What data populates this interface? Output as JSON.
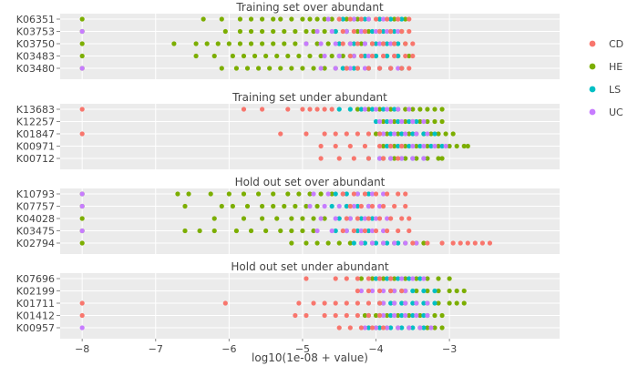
{
  "chart_data": {
    "type": "scatter",
    "xlabel": "log10(1e-08 + value)",
    "xlim": [
      -8.3,
      -1.5
    ],
    "x_ticks": [
      -8,
      -7,
      -6,
      -5,
      -4,
      -3
    ],
    "x_tick_labels": [
      "−8",
      "−7",
      "−6",
      "−5",
      "−4",
      "−3"
    ],
    "grid": true,
    "legend_position": "right",
    "legend": [
      {
        "name": "CD",
        "color": "#F8766D"
      },
      {
        "name": "HE",
        "color": "#7CAE00"
      },
      {
        "name": "LS",
        "color": "#00BFC4"
      },
      {
        "name": "UC",
        "color": "#C77CFF"
      }
    ],
    "panels": [
      {
        "title": "Training set over abundant",
        "categories": [
          "K06351",
          "K03753",
          "K03750",
          "K03483",
          "K03480"
        ],
        "points": {
          "K06351": {
            "CD": [
              -4.5,
              -4.35,
              -4.2,
              -4.0,
              -3.85,
              -3.7,
              -3.55
            ],
            "HE": [
              -8,
              -6.35,
              -6.1,
              -5.85,
              -5.7,
              -5.55,
              -5.4,
              -5.3,
              -5.15,
              -5.0,
              -4.9,
              -4.8,
              -4.7,
              -4.6,
              -4.4,
              -4.25,
              -4.1,
              -3.95,
              -3.75,
              -3.6
            ],
            "LS": [
              -4.45,
              -4.3,
              -4.15,
              -3.95,
              -3.8,
              -3.65
            ],
            "UC": [
              -4.65,
              -4.5,
              -4.3,
              -4.1,
              -3.9,
              -3.7
            ]
          },
          "K03753": {
            "CD": [
              -4.45,
              -4.3,
              -4.15,
              -3.95,
              -3.8,
              -3.65,
              -3.55
            ],
            "HE": [
              -8,
              -6.05,
              -5.85,
              -5.7,
              -5.55,
              -5.4,
              -5.25,
              -5.1,
              -4.95,
              -4.85,
              -4.7,
              -4.55,
              -4.4,
              -4.25,
              -4.1,
              -3.95,
              -3.8,
              -3.65
            ],
            "LS": [
              -4.55,
              -4.4,
              -4.2,
              -4.05,
              -3.9,
              -3.75
            ],
            "UC": [
              -8,
              -4.8,
              -4.6,
              -4.4,
              -4.2,
              -4.0,
              -3.85,
              -3.7
            ]
          },
          "K03750": {
            "CD": [
              -4.45,
              -4.25,
              -4.05,
              -3.9,
              -3.75,
              -3.6,
              -3.5
            ],
            "HE": [
              -8,
              -6.75,
              -6.45,
              -6.3,
              -6.15,
              -6.0,
              -5.85,
              -5.7,
              -5.55,
              -5.4,
              -5.25,
              -5.1,
              -4.95,
              -4.8,
              -4.65,
              -4.5,
              -4.35,
              -4.2,
              -4.05,
              -3.9,
              -3.75,
              -3.6
            ],
            "LS": [
              -4.5,
              -4.3,
              -4.15,
              -4.0,
              -3.85,
              -3.7
            ],
            "UC": [
              -4.95,
              -4.75,
              -4.55,
              -4.35,
              -4.15,
              -3.95,
              -3.8
            ]
          },
          "K03483": {
            "CD": [
              -4.35,
              -4.2,
              -4.05,
              -3.9,
              -3.75,
              -3.6,
              -3.5
            ],
            "HE": [
              -8,
              -6.45,
              -6.2,
              -5.95,
              -5.8,
              -5.65,
              -5.5,
              -5.35,
              -5.2,
              -5.05,
              -4.9,
              -4.75,
              -4.6,
              -4.45,
              -4.3,
              -4.15,
              -4.0,
              -3.85,
              -3.7,
              -3.55
            ],
            "LS": [
              -4.5,
              -4.35,
              -4.15,
              -4.0,
              -3.85,
              -3.7
            ],
            "UC": [
              -4.7,
              -4.5,
              -4.3,
              -4.1,
              -3.9,
              -3.75
            ]
          },
          "K03480": {
            "CD": [
              -4.4,
              -4.25,
              -4.1,
              -3.95,
              -3.8,
              -3.65,
              -3.55
            ],
            "HE": [
              -8,
              -6.1,
              -5.9,
              -5.75,
              -5.6,
              -5.45,
              -5.3,
              -5.15,
              -5.0,
              -4.85,
              -4.7,
              -4.55,
              -4.4,
              -4.25,
              -4.1,
              -3.95,
              -3.8,
              -3.65
            ],
            "LS": [
              -4.45,
              -4.3,
              -4.1,
              -3.95,
              -3.8,
              -3.65
            ],
            "UC": [
              -8,
              -4.75,
              -4.55,
              -4.35,
              -4.15,
              -3.95,
              -3.8,
              -3.7
            ]
          }
        }
      },
      {
        "title": "Training set under abundant",
        "categories": [
          "K13683",
          "K12257",
          "K01847",
          "K00971",
          "K00712"
        ],
        "points": {
          "K13683": {
            "CD": [
              -8,
              -5.8,
              -5.55,
              -5.2,
              -5.0,
              -4.9,
              -4.8,
              -4.7,
              -4.6
            ],
            "HE": [
              -4.25,
              -4.1,
              -3.95,
              -3.8,
              -3.7,
              -3.6,
              -3.5,
              -3.4,
              -3.3,
              -3.2,
              -3.1
            ],
            "LS": [
              -4.5,
              -4.35,
              -4.2,
              -4.05,
              -3.9,
              -3.75
            ],
            "UC": [
              -4.15,
              -4.0,
              -3.85,
              -3.7,
              -3.55
            ]
          },
          "K12257": {
            "CD": [],
            "HE": [
              -3.9,
              -3.75,
              -3.6,
              -3.5,
              -3.4,
              -3.3,
              -3.2,
              -3.1
            ],
            "LS": [
              -4.0,
              -3.85,
              -3.7,
              -3.55,
              -3.45
            ],
            "UC": [
              -3.95,
              -3.8,
              -3.65,
              -3.5,
              -3.35
            ]
          },
          "K01847": {
            "CD": [
              -8,
              -5.3,
              -4.95,
              -4.7,
              -4.55,
              -4.4,
              -4.25,
              -4.1,
              -3.95
            ],
            "HE": [
              -4.0,
              -3.85,
              -3.7,
              -3.55,
              -3.45,
              -3.35,
              -3.25,
              -3.15,
              -3.05,
              -2.95
            ],
            "LS": [
              -3.95,
              -3.8,
              -3.65,
              -3.5,
              -3.35,
              -3.2
            ],
            "UC": [
              -3.9,
              -3.75,
              -3.6,
              -3.45,
              -3.3
            ]
          },
          "K00971": {
            "CD": [
              -4.75,
              -4.55,
              -4.35,
              -4.15,
              -3.95,
              -3.8,
              -3.65
            ],
            "HE": [
              -3.9,
              -3.75,
              -3.6,
              -3.45,
              -3.3,
              -3.15,
              -3.0,
              -2.9,
              -2.8,
              -2.75
            ],
            "LS": [
              -3.85,
              -3.7,
              -3.55,
              -3.4,
              -3.25,
              -3.1
            ],
            "UC": [
              -3.8,
              -3.65,
              -3.5,
              -3.35,
              -3.2,
              -3.05
            ]
          },
          "K00712": {
            "CD": [
              -4.75,
              -4.5,
              -4.3,
              -4.1,
              -3.9,
              -3.7
            ],
            "HE": [
              -3.9,
              -3.75,
              -3.6,
              -3.45,
              -3.3,
              -3.15,
              -3.1
            ],
            "LS": [
              -4.1,
              -3.95,
              -3.8,
              -3.65,
              -3.5,
              -3.35
            ],
            "UC": [
              -3.95,
              -3.8,
              -3.65,
              -3.5,
              -3.35
            ]
          }
        }
      },
      {
        "title": "Hold out set over abundant",
        "categories": [
          "K10793",
          "K07757",
          "K04028",
          "K03475",
          "K02794"
        ],
        "points": {
          "K10793": {
            "CD": [
              -4.45,
              -4.3,
              -4.15,
              -4.0,
              -3.85,
              -3.7,
              -3.6
            ],
            "HE": [
              -8,
              -6.7,
              -6.55,
              -6.25,
              -6.0,
              -5.8,
              -5.6,
              -5.4,
              -5.2,
              -5.05,
              -4.9,
              -4.75,
              -4.6
            ],
            "LS": [
              -4.55,
              -4.4,
              -4.25,
              -4.1
            ],
            "UC": [
              -8,
              -4.85,
              -4.65,
              -4.45,
              -4.25,
              -4.05,
              -3.9
            ]
          },
          "K07757": {
            "CD": [
              -4.35,
              -4.2,
              -4.05,
              -3.9,
              -3.75,
              -3.6
            ],
            "HE": [
              -8,
              -6.6,
              -6.1,
              -5.95,
              -5.75,
              -5.55,
              -5.4,
              -5.25,
              -5.1,
              -4.95,
              -4.8
            ],
            "LS": [
              -4.6,
              -4.4,
              -4.25,
              -4.1
            ],
            "UC": [
              -8,
              -4.9,
              -4.7,
              -4.5,
              -4.3,
              -4.1,
              -3.95
            ]
          },
          "K04028": {
            "CD": [
              -4.4,
              -4.25,
              -4.1,
              -3.95,
              -3.8,
              -3.65,
              -3.55
            ],
            "HE": [
              -8,
              -6.2,
              -5.8,
              -5.55,
              -5.35,
              -5.15,
              -5.0,
              -4.85,
              -4.7
            ],
            "LS": [
              -4.5,
              -4.35,
              -4.2,
              -4.05
            ],
            "UC": [
              -4.75,
              -4.55,
              -4.35,
              -4.15,
              -4.0,
              -3.85
            ]
          },
          "K03475": {
            "CD": [
              -4.45,
              -4.3,
              -4.15,
              -4.0,
              -3.85,
              -3.7,
              -3.55
            ],
            "HE": [
              -8,
              -6.6,
              -6.4,
              -6.2,
              -5.9,
              -5.7,
              -5.5,
              -5.3,
              -5.15,
              -5.0,
              -4.85
            ],
            "LS": [
              -4.55,
              -4.4,
              -4.25,
              -4.1
            ],
            "UC": [
              -8,
              -4.8,
              -4.6,
              -4.4,
              -4.2,
              -4.05,
              -3.9
            ]
          },
          "K02794": {
            "CD": [
              -3.5,
              -3.3,
              -3.1,
              -2.95,
              -2.85,
              -2.75,
              -2.65,
              -2.55,
              -2.45
            ],
            "HE": [
              -8,
              -5.15,
              -4.95,
              -4.8,
              -4.65,
              -4.5,
              -4.35,
              -4.2,
              -4.05,
              -3.9,
              -3.75,
              -3.6,
              -3.45,
              -3.35
            ],
            "LS": [
              -4.3,
              -4.15,
              -4.0,
              -3.85,
              -3.7
            ],
            "UC": [
              -4.2,
              -4.05,
              -3.9,
              -3.75,
              -3.6,
              -3.45
            ]
          }
        }
      },
      {
        "title": "Hold out set under abundant",
        "categories": [
          "K07696",
          "K02199",
          "K01711",
          "K01412",
          "K00957"
        ],
        "points": {
          "K07696": {
            "CD": [
              -4.95,
              -4.55,
              -4.4,
              -4.25,
              -4.1,
              -3.95,
              -3.8
            ],
            "HE": [
              -4.2,
              -4.05,
              -3.9,
              -3.75,
              -3.6,
              -3.45,
              -3.3,
              -3.15,
              -3.0
            ],
            "LS": [
              -4.0,
              -3.85,
              -3.7,
              -3.55,
              -3.4
            ],
            "UC": [
              -3.95,
              -3.8,
              -3.65,
              -3.5,
              -3.35
            ]
          },
          "K02199": {
            "CD": [
              -4.25,
              -4.1,
              -3.95,
              -3.8,
              -3.65
            ],
            "HE": [
              -3.75,
              -3.6,
              -3.45,
              -3.3,
              -3.15,
              -3.0,
              -2.9,
              -2.8
            ],
            "LS": [
              -3.8,
              -3.65,
              -3.5,
              -3.35,
              -3.2
            ],
            "UC": [
              -4.2,
              -4.05,
              -3.9,
              -3.75,
              -3.6
            ]
          },
          "K01711": {
            "CD": [
              -8,
              -6.05,
              -5.05,
              -4.85,
              -4.7,
              -4.55,
              -4.4,
              -4.25,
              -4.1,
              -3.95
            ],
            "HE": [
              -3.9,
              -3.75,
              -3.6,
              -3.45,
              -3.3,
              -3.15,
              -3.0,
              -2.9,
              -2.8
            ],
            "LS": [
              -3.95,
              -3.8,
              -3.65,
              -3.5,
              -3.35,
              -3.2
            ],
            "UC": [
              -3.9,
              -3.75,
              -3.6,
              -3.45,
              -3.3
            ]
          },
          "K01412": {
            "CD": [
              -8,
              -5.1,
              -4.95,
              -4.7,
              -4.55,
              -4.4,
              -4.25,
              -4.1,
              -3.95
            ],
            "HE": [
              -4.15,
              -4.0,
              -3.85,
              -3.7,
              -3.55,
              -3.4,
              -3.3,
              -3.2,
              -3.1
            ],
            "LS": [
              -4.1,
              -3.95,
              -3.8,
              -3.65,
              -3.5,
              -3.35
            ],
            "UC": [
              -3.9,
              -3.75,
              -3.6,
              -3.45,
              -3.3
            ]
          },
          "K00957": {
            "CD": [
              -4.5,
              -4.35,
              -4.2,
              -4.05,
              -3.9
            ],
            "HE": [
              -4.0,
              -3.85,
              -3.7,
              -3.55,
              -3.4,
              -3.3,
              -3.2,
              -3.1
            ],
            "LS": [
              -4.1,
              -3.95,
              -3.8,
              -3.65,
              -3.5,
              -3.35
            ],
            "UC": [
              -8,
              -4.15,
              -4.0,
              -3.85,
              -3.7,
              -3.55,
              -3.4,
              -3.25
            ]
          }
        }
      }
    ]
  }
}
